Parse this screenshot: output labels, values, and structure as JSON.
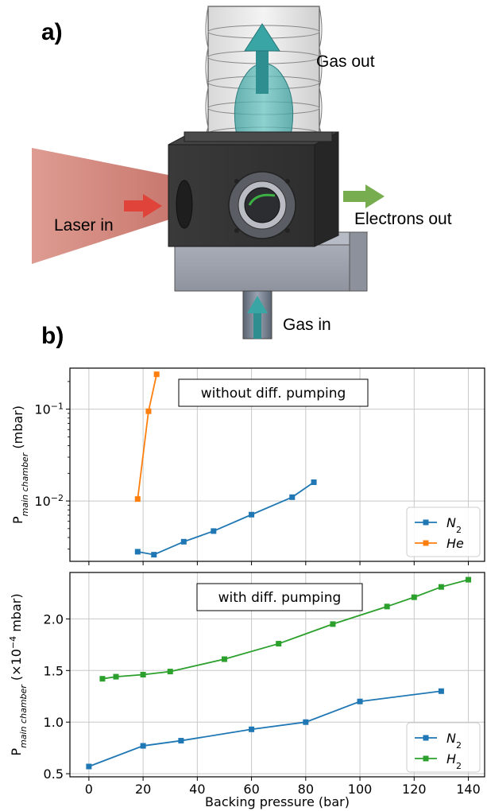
{
  "panel_a": {
    "letter": "a)",
    "labels": {
      "gas_out": "Gas out",
      "laser_in": "Laser in",
      "electrons_out": "Electrons out",
      "gas_in": "Gas in"
    }
  },
  "panel_b": {
    "letter": "b)"
  },
  "colors": {
    "n2": "#1f77b4",
    "he": "#ff7f0e",
    "h2": "#2ca02c"
  },
  "chart_data": [
    {
      "type": "line",
      "title": "without diff. pumping",
      "ylabel": "P_{main chamber} (mbar)",
      "yscale": "log",
      "ylim": [
        0.0022,
        0.28
      ],
      "xlim": [
        -7,
        146
      ],
      "yticks": [
        {
          "value": 0.1,
          "base": "10",
          "exp": "−1"
        },
        {
          "value": 0.01,
          "base": "10",
          "exp": "−2"
        }
      ],
      "grid": true,
      "legend_position": "lower-right",
      "series": [
        {
          "name": "N",
          "sub": "2",
          "color_key": "n2",
          "x": [
            18,
            24,
            35,
            46,
            60,
            75,
            83
          ],
          "y": [
            0.0028,
            0.0026,
            0.0036,
            0.0047,
            0.0071,
            0.011,
            0.016
          ]
        },
        {
          "name": "He",
          "sub": "",
          "color_key": "he",
          "x": [
            18,
            22,
            25
          ],
          "y": [
            0.0105,
            0.095,
            0.24
          ]
        }
      ]
    },
    {
      "type": "line",
      "title": "with diff. pumping",
      "ylabel": "P_{main chamber} (×10^−4 mbar)",
      "xlabel": "Backing pressure (bar)",
      "yscale": "linear",
      "ylim": [
        0.47,
        2.45
      ],
      "xlim": [
        -7,
        146
      ],
      "yticks": [
        {
          "value": 0.5,
          "label": "0.5"
        },
        {
          "value": 1.0,
          "label": "1.0"
        },
        {
          "value": 1.5,
          "label": "1.5"
        },
        {
          "value": 2.0,
          "label": "2.0"
        }
      ],
      "xticks": [
        0,
        20,
        40,
        60,
        80,
        100,
        120,
        140
      ],
      "grid": true,
      "legend_position": "lower-right",
      "series": [
        {
          "name": "N",
          "sub": "2",
          "color_key": "n2",
          "x": [
            0,
            20,
            34,
            60,
            80,
            100,
            130
          ],
          "y": [
            0.57,
            0.77,
            0.82,
            0.93,
            1.0,
            1.2,
            1.3
          ]
        },
        {
          "name": "H",
          "sub": "2",
          "color_key": "h2",
          "x": [
            5,
            10,
            20,
            30,
            50,
            70,
            90,
            110,
            120,
            130,
            140
          ],
          "y": [
            1.42,
            1.44,
            1.46,
            1.49,
            1.61,
            1.76,
            1.95,
            2.12,
            2.21,
            2.31,
            2.38
          ]
        }
      ]
    }
  ]
}
